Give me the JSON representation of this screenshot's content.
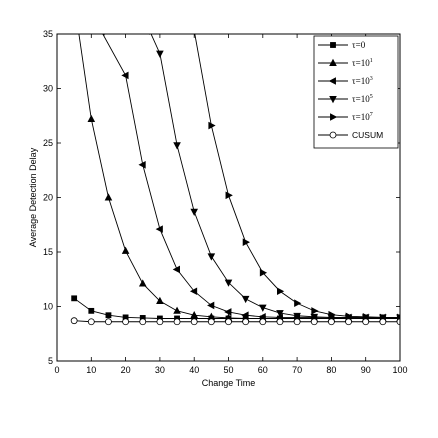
{
  "chart_data": {
    "type": "line",
    "title": "",
    "xlabel": "Change Time",
    "ylabel": "Average Detection Delay",
    "xlim": [
      0,
      100
    ],
    "ylim": [
      5,
      35
    ],
    "xticks": [
      0,
      10,
      20,
      30,
      40,
      50,
      60,
      70,
      80,
      90,
      100
    ],
    "yticks": [
      5,
      10,
      15,
      20,
      25,
      30,
      35
    ],
    "grid": false,
    "legend_position": "top-right",
    "series": [
      {
        "name": "τ=0",
        "name_base": "τ=0",
        "name_sup": "",
        "marker": "square",
        "x": [
          5,
          10,
          15,
          20,
          25,
          30,
          35,
          40,
          45,
          50,
          55,
          60,
          65,
          70,
          75,
          80,
          85,
          90,
          95,
          100
        ],
        "y": [
          10.75,
          9.6,
          9.2,
          9.0,
          8.95,
          8.9,
          8.9,
          8.9,
          8.9,
          8.9,
          8.9,
          8.9,
          8.9,
          8.9,
          8.9,
          8.9,
          8.9,
          8.9,
          8.9,
          8.9
        ]
      },
      {
        "name": "τ=10^1",
        "name_base": "τ=10",
        "name_sup": "1",
        "marker": "triangle-up",
        "x": [
          5,
          10,
          15,
          20,
          25,
          30,
          35,
          40,
          45,
          50,
          55,
          60,
          65,
          70,
          75,
          80,
          85,
          90,
          95,
          100
        ],
        "y": [
          38,
          27.2,
          20.0,
          15.1,
          12.1,
          10.5,
          9.6,
          9.2,
          9.05,
          8.95,
          8.9,
          8.9,
          8.9,
          8.9,
          8.9,
          8.9,
          8.9,
          8.9,
          8.9,
          8.9
        ]
      },
      {
        "name": "τ=10^3",
        "name_base": "τ=10",
        "name_sup": "3",
        "marker": "triangle-left",
        "x": [
          13,
          20,
          25,
          30,
          35,
          40,
          45,
          50,
          55,
          60,
          65,
          70,
          75,
          80,
          85,
          90,
          95,
          100
        ],
        "y": [
          35.2,
          31.2,
          23.0,
          17.1,
          13.4,
          11.4,
          10.1,
          9.5,
          9.2,
          9.05,
          9.0,
          9.0,
          9.0,
          9.0,
          9.0,
          9.0,
          9.0,
          9.0
        ]
      },
      {
        "name": "τ=10^5",
        "name_base": "τ=10",
        "name_sup": "5",
        "marker": "triangle-down",
        "x": [
          27,
          30,
          35,
          40,
          45,
          50,
          55,
          60,
          65,
          70,
          75,
          80,
          85,
          90,
          95,
          100
        ],
        "y": [
          35.3,
          33.2,
          24.8,
          18.7,
          14.6,
          12.2,
          10.7,
          9.9,
          9.4,
          9.15,
          9.05,
          9.0,
          9.0,
          9.0,
          9.0,
          9.0
        ]
      },
      {
        "name": "τ=10^7",
        "name_base": "τ=10",
        "name_sup": "7",
        "marker": "triangle-right",
        "x": [
          40,
          45,
          50,
          55,
          60,
          65,
          70,
          75,
          80,
          85,
          90,
          95,
          100
        ],
        "y": [
          35.3,
          26.6,
          20.2,
          15.9,
          13.1,
          11.4,
          10.3,
          9.6,
          9.25,
          9.1,
          9.05,
          9.0,
          9.0
        ]
      },
      {
        "name": "CUSUM",
        "name_base": "CUSUM",
        "name_sup": "",
        "marker": "circle",
        "x": [
          5,
          10,
          15,
          20,
          25,
          30,
          35,
          40,
          45,
          50,
          55,
          60,
          65,
          70,
          75,
          80,
          85,
          90,
          95,
          100
        ],
        "y": [
          8.7,
          8.6,
          8.6,
          8.6,
          8.6,
          8.6,
          8.6,
          8.6,
          8.6,
          8.6,
          8.6,
          8.6,
          8.6,
          8.6,
          8.6,
          8.6,
          8.6,
          8.6,
          8.6,
          8.6
        ]
      }
    ]
  }
}
